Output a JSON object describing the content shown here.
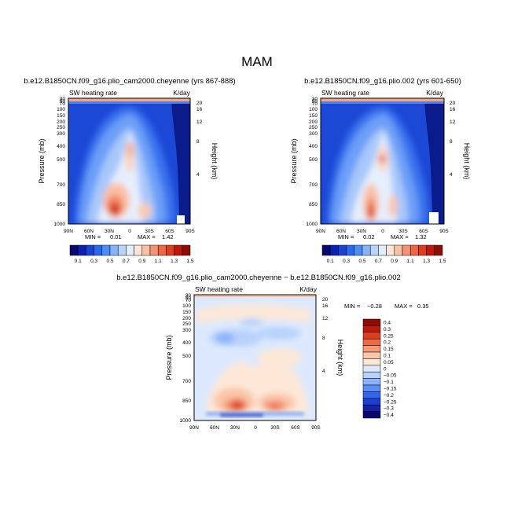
{
  "page_title": "MAM",
  "colors": {
    "cb_abs": [
      "#08086e",
      "#0b1fb0",
      "#1743d6",
      "#2a68ee",
      "#4f8df6",
      "#86b4fa",
      "#b8d4fc",
      "#e2eefd",
      "#fde6d6",
      "#fbc0a3",
      "#f59474",
      "#ee6644",
      "#e03d1f",
      "#c01808",
      "#8e0c03"
    ],
    "cb_diff": [
      "#08086e",
      "#1320a8",
      "#1c3fd2",
      "#3466ee",
      "#5c8cf6",
      "#8cb2fb",
      "#b8d2fc",
      "#dce9fd",
      "#fde8d8",
      "#fbc6aa",
      "#f59a79",
      "#ec6b47",
      "#dc3f1e",
      "#bc1a08",
      "#8e0c03"
    ]
  },
  "chart_data": [
    {
      "type": "heatmap",
      "subtitle": "b.e12.B1850CN.f09_g16.plio_cam2000.cheyenne (yrs 867-888)",
      "variable": "SW heating rate",
      "units": "K/day",
      "ylabel": "Pressure (mb)",
      "ylabel_right": "Height (km)",
      "x_ticks": [
        "90N",
        "60N",
        "30N",
        "0",
        "30S",
        "60S",
        "90S"
      ],
      "y_ticks": [
        "30",
        "50",
        "70",
        "100",
        "150",
        "200",
        "250",
        "300",
        "400",
        "500",
        "700",
        "850",
        "1000"
      ],
      "height_ticks": [
        "20",
        "16",
        "12",
        "8",
        "4"
      ],
      "min_label": "MIN =",
      "min_value": "0.01",
      "max_label": "MAX =",
      "max_value": "1.42",
      "colorbar_labels": [
        "0.1",
        "0.3",
        "0.5",
        "0.7",
        "0.9",
        "1.1",
        "1.3",
        "1.5"
      ]
    },
    {
      "type": "heatmap",
      "subtitle": "b.e12.B1850CN.f09_g16.plio.002 (yrs 601-650)",
      "variable": "SW heating rate",
      "units": "K/day",
      "ylabel": "Pressure (mb)",
      "ylabel_right": "Height (km)",
      "x_ticks": [
        "90N",
        "60N",
        "30N",
        "0",
        "30S",
        "60S",
        "90S"
      ],
      "y_ticks": [
        "30",
        "50",
        "70",
        "100",
        "150",
        "200",
        "250",
        "300",
        "400",
        "500",
        "700",
        "850",
        "1000"
      ],
      "height_ticks": [
        "20",
        "16",
        "12",
        "8",
        "4"
      ],
      "min_label": "MIN =",
      "min_value": "0.02",
      "max_label": "MAX =",
      "max_value": "1.32",
      "colorbar_labels": [
        "0.1",
        "0.3",
        "0.5",
        "0.7",
        "0.9",
        "1.1",
        "1.3",
        "1.5"
      ]
    },
    {
      "type": "heatmap",
      "subtitle": "b.e12.B1850CN.f09_g16.plio_cam2000.cheyenne − b.e12.B1850CN.f09_g16.plio.002",
      "variable": "SW heating rate",
      "units": "K/day",
      "ylabel": "Pressure (mb)",
      "ylabel_right": "Height (km)",
      "x_ticks": [
        "90N",
        "60N",
        "30N",
        "0",
        "30S",
        "60S",
        "90S"
      ],
      "y_ticks": [
        "30",
        "50",
        "70",
        "100",
        "150",
        "200",
        "250",
        "300",
        "400",
        "500",
        "700",
        "850",
        "1000"
      ],
      "height_ticks": [
        "20",
        "16",
        "12",
        "8",
        "4"
      ],
      "min_label": "MIN =",
      "min_value": "−0.28",
      "max_label": "MAX =",
      "max_value": "0.35",
      "colorbar_labels": [
        "0.4",
        "0.3",
        "0.25",
        "0.2",
        "0.15",
        "0.1",
        "0.05",
        "0",
        "−0.05",
        "−0.1",
        "−0.15",
        "−0.2",
        "−0.25",
        "−0.3",
        "−0.4"
      ]
    }
  ]
}
